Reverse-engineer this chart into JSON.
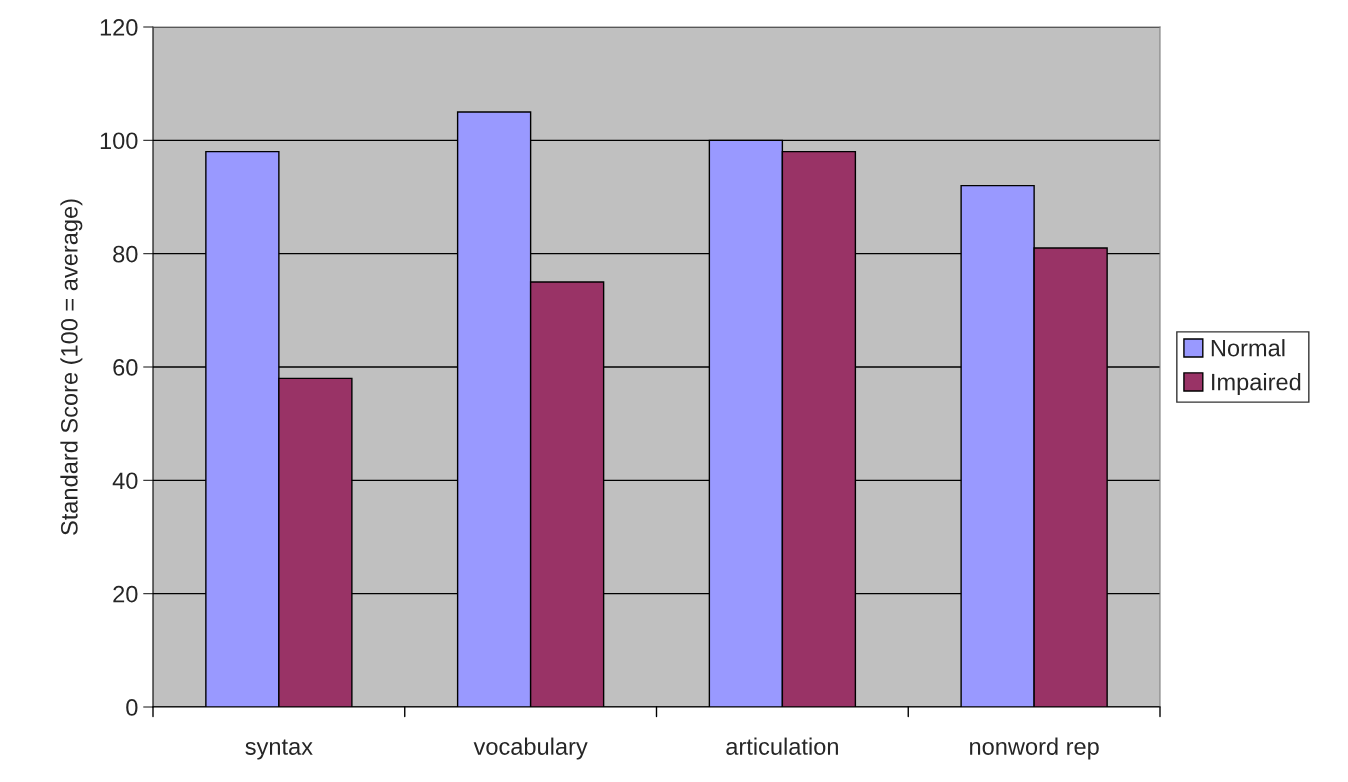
{
  "chart_data": {
    "type": "bar",
    "ylabel": "Standard Score (100 = average)",
    "categories": [
      "syntax",
      "vocabulary",
      "articulation",
      "nonword rep"
    ],
    "series": [
      {
        "name": "Normal",
        "color": "#9999ff",
        "values": [
          98,
          105,
          100,
          92
        ]
      },
      {
        "name": "Impaired",
        "color": "#993366",
        "values": [
          58,
          75,
          98,
          81
        ]
      }
    ],
    "ylim": [
      0,
      120
    ],
    "yticks": [
      0,
      20,
      40,
      60,
      80,
      100,
      120
    ],
    "grid": "y",
    "legend": "right"
  }
}
